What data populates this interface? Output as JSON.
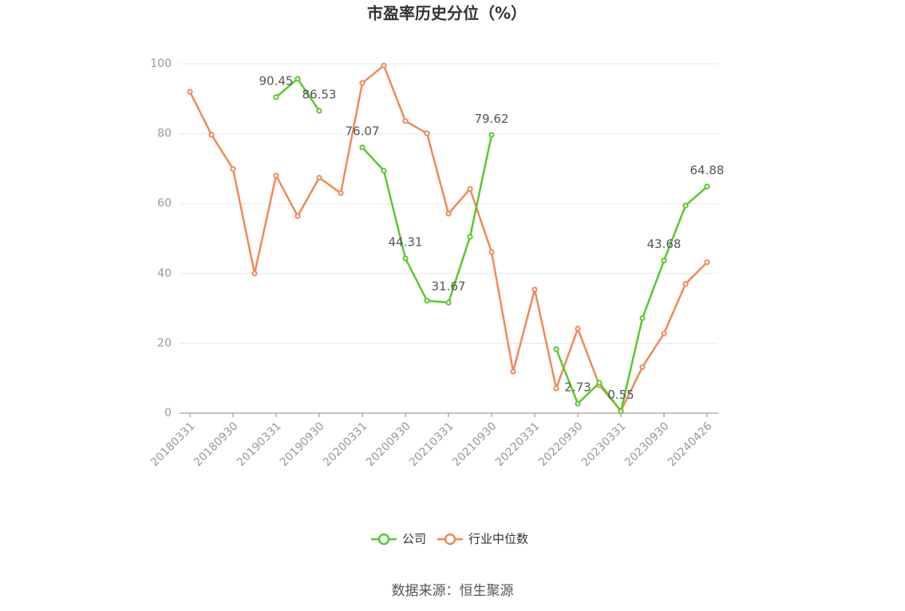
{
  "chart_data": {
    "type": "line",
    "title": "市盈率历史分位（%）",
    "source": "数据来源：恒生聚源",
    "categories": [
      "20180331",
      null,
      "20180930",
      null,
      "20190331",
      null,
      "20190930",
      null,
      "20200331",
      null,
      "20200930",
      null,
      "20210331",
      null,
      "20210930",
      null,
      "20220331",
      null,
      "20220930",
      null,
      "20230331",
      null,
      "20230930",
      null,
      "20240426"
    ],
    "series": [
      {
        "name": "公司",
        "color": "#5cc72e",
        "values": [
          null,
          null,
          null,
          null,
          90.45,
          95.7,
          86.53,
          null,
          76.07,
          69.4,
          44.31,
          32.2,
          31.67,
          50.5,
          79.62,
          null,
          null,
          18.3,
          2.73,
          8.7,
          0.55,
          27.2,
          43.68,
          59.4,
          64.88
        ],
        "value_labels": [
          null,
          null,
          null,
          null,
          "90.45",
          null,
          "86.53",
          null,
          "76.07",
          null,
          "44.31",
          null,
          "31.67",
          null,
          "79.62",
          null,
          null,
          null,
          "2.73",
          null,
          "0.55",
          null,
          "43.68",
          null,
          "64.88"
        ]
      },
      {
        "name": "行业中位数",
        "color": "#ee8a5a",
        "values": [
          92.0,
          79.7,
          69.9,
          40.0,
          68.0,
          56.4,
          67.4,
          63.0,
          94.5,
          99.5,
          83.6,
          80.1,
          57.1,
          64.2,
          46.1,
          11.9,
          35.4,
          7.1,
          24.2,
          8.0,
          0.7,
          13.2,
          22.8,
          37.0,
          43.2
        ]
      }
    ],
    "ylim": [
      0,
      100
    ],
    "yticks": [
      0,
      20,
      40,
      60,
      80,
      100
    ],
    "grid": true
  }
}
